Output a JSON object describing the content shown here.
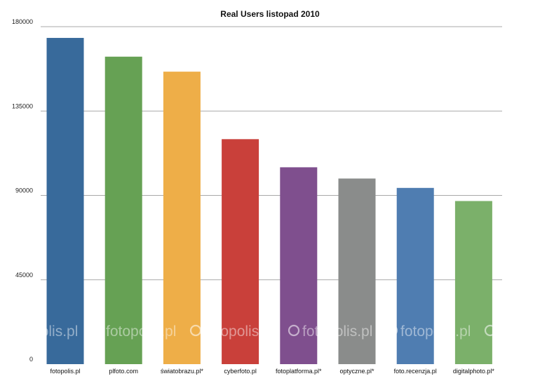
{
  "chart_data": {
    "type": "bar",
    "title": "Real Users listopad 2010",
    "xlabel": "",
    "ylabel": "",
    "categories": [
      "fotopolis.pl",
      "plfoto.com",
      "światobrazu.pl*",
      "cyberfoto.pl",
      "fotoplatforma.pl*",
      "optyczne.pl*",
      "foto.recenzja.pl",
      "digitalphoto.pl*"
    ],
    "values": [
      174000,
      164000,
      156000,
      120000,
      105000,
      99000,
      94000,
      87000
    ],
    "colors": [
      "#386a9b",
      "#66a154",
      "#eeae48",
      "#c9403a",
      "#7f4f8e",
      "#8a8c8b",
      "#4f7db1",
      "#7bb06a"
    ],
    "ylim": [
      0,
      180000
    ],
    "yticks": [
      0,
      45000,
      90000,
      135000,
      180000
    ],
    "grid": true,
    "legend": "none"
  },
  "watermark": {
    "text": "fotopolis.pl"
  }
}
